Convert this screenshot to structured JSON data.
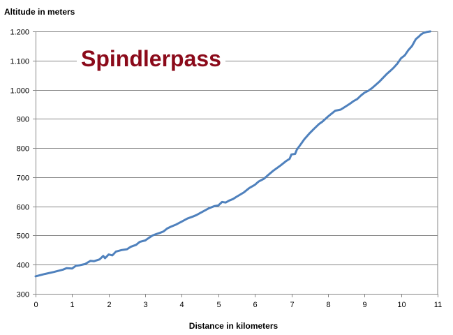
{
  "chart_data": {
    "type": "line",
    "title": "Spindlerpass",
    "xlabel": "Distance in kilometers",
    "ylabel": "Altitude in meters",
    "xlim": [
      0,
      11
    ],
    "ylim": [
      300,
      1200
    ],
    "x_ticks": [
      "0",
      "1",
      "2",
      "3",
      "4",
      "5",
      "6",
      "7",
      "8",
      "9",
      "10",
      "11"
    ],
    "y_ticks": [
      "300",
      "400",
      "500",
      "600",
      "700",
      "800",
      "900",
      "1.000",
      "1.100",
      "1.200"
    ],
    "grid": "horizontal",
    "line_color": "#4F81BD",
    "title_color": "#8B0A1A",
    "series": [
      {
        "x": [
          0,
          0.25,
          0.5,
          0.75,
          0.85,
          1.0,
          1.1,
          1.2,
          1.35,
          1.5,
          1.6,
          1.75,
          1.85,
          1.9,
          2.0,
          2.1,
          2.2,
          2.35,
          2.5,
          2.6,
          2.75,
          2.85,
          3.0,
          3.1,
          3.2,
          3.3,
          3.4,
          3.5,
          3.6,
          3.7,
          3.85,
          4.0,
          4.15,
          4.3,
          4.4,
          4.5,
          4.6,
          4.75,
          4.9,
          5.0,
          5.1,
          5.2,
          5.3,
          5.4,
          5.5,
          5.7,
          5.85,
          6.0,
          6.1,
          6.25,
          6.35,
          6.5,
          6.7,
          6.85,
          6.95,
          7.0,
          7.1,
          7.15,
          7.25,
          7.35,
          7.5,
          7.6,
          7.75,
          7.85,
          8.0,
          8.1,
          8.2,
          8.35,
          8.5,
          8.6,
          8.7,
          8.8,
          8.9,
          9.0,
          9.1,
          9.2,
          9.3,
          9.4,
          9.5,
          9.6,
          9.7,
          9.8,
          9.9,
          10.0,
          10.1,
          10.2,
          10.3,
          10.4,
          10.5,
          10.55,
          10.6,
          10.7,
          10.8
        ],
        "y": [
          360,
          368,
          375,
          383,
          388,
          387,
          396,
          398,
          402,
          413,
          412,
          418,
          430,
          422,
          435,
          432,
          445,
          450,
          453,
          461,
          468,
          478,
          483,
          492,
          500,
          505,
          509,
          514,
          524,
          530,
          538,
          548,
          558,
          565,
          570,
          577,
          584,
          594,
          601,
          603,
          615,
          613,
          620,
          625,
          633,
          648,
          663,
          674,
          685,
          695,
          706,
          722,
          740,
          755,
          763,
          778,
          780,
          795,
          812,
          830,
          851,
          864,
          882,
          891,
          908,
          918,
          928,
          932,
          944,
          952,
          961,
          968,
          980,
          990,
          996,
          1005,
          1016,
          1027,
          1040,
          1053,
          1064,
          1076,
          1090,
          1108,
          1118,
          1136,
          1150,
          1173,
          1184,
          1190,
          1194,
          1198,
          1200
        ]
      }
    ]
  }
}
